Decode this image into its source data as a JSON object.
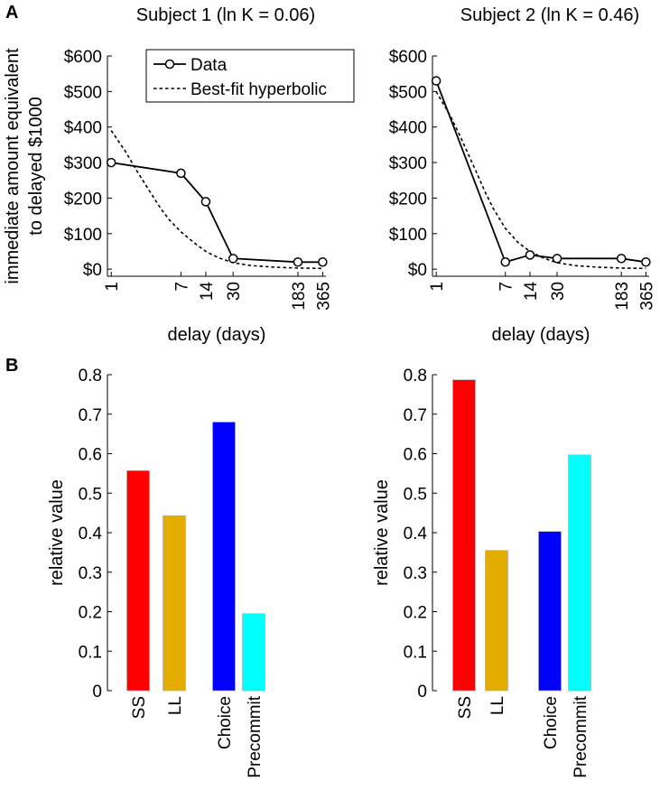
{
  "panel_labels": [
    "A",
    "B"
  ],
  "chart_data": [
    {
      "id": "subject1-delay",
      "type": "line",
      "title": "Subject 1 (ln K = 0.06)",
      "xlabel": "delay (days)",
      "ylabel": [
        "immediate amount equivalent",
        "to delayed $1000"
      ],
      "xscale": "log",
      "xlim": [
        0.9,
        400
      ],
      "ylim": [
        -20,
        600
      ],
      "xticks": [
        1,
        7,
        14,
        30,
        183,
        365
      ],
      "xtick_labels": [
        "1",
        "7",
        "14",
        "30",
        "183",
        "365"
      ],
      "yticks": [
        0,
        100,
        200,
        300,
        400,
        500,
        600
      ],
      "ytick_labels": [
        "$0",
        "$100",
        "$200",
        "$300",
        "$400",
        "$500",
        "$600"
      ],
      "legend": {
        "position": "top-right",
        "entries": [
          "Data",
          "Best-fit hyperbolic"
        ]
      },
      "series": [
        {
          "name": "Data",
          "style": "solid-circle",
          "x": [
            1,
            7,
            14,
            30,
            183,
            365
          ],
          "y": [
            300,
            270,
            190,
            30,
            20,
            20
          ]
        },
        {
          "name": "Best-fit hyperbolic",
          "style": "dashed",
          "x": [
            1,
            1.5,
            2,
            3,
            4,
            5,
            7,
            10,
            14,
            20,
            30,
            50,
            90,
            183,
            365
          ],
          "y": [
            390,
            330,
            280,
            215,
            170,
            140,
            105,
            75,
            50,
            32,
            18,
            10,
            6,
            3,
            2
          ]
        }
      ]
    },
    {
      "id": "subject2-delay",
      "type": "line",
      "title": "Subject 2 (ln K = 0.46)",
      "xlabel": "delay (days)",
      "ylabel": "",
      "xscale": "log",
      "xlim": [
        0.9,
        400
      ],
      "ylim": [
        -20,
        600
      ],
      "xticks": [
        1,
        7,
        14,
        30,
        183,
        365
      ],
      "xtick_labels": [
        "1",
        "7",
        "14",
        "30",
        "183",
        "365"
      ],
      "yticks": [
        0,
        100,
        200,
        300,
        400,
        500,
        600
      ],
      "ytick_labels": [
        "$0",
        "$100",
        "$200",
        "$300",
        "$400",
        "$500",
        "$600"
      ],
      "series": [
        {
          "name": "Data",
          "style": "solid-circle",
          "x": [
            1,
            7,
            14,
            30,
            183,
            365
          ],
          "y": [
            530,
            20,
            40,
            30,
            30,
            20
          ]
        },
        {
          "name": "Best-fit hyperbolic",
          "style": "dashed",
          "x": [
            1,
            1.5,
            2,
            3,
            4,
            5,
            7,
            10,
            14,
            20,
            30,
            50,
            90,
            183,
            365
          ],
          "y": [
            500,
            430,
            370,
            280,
            215,
            170,
            115,
            75,
            50,
            32,
            18,
            10,
            6,
            3,
            2
          ]
        }
      ]
    },
    {
      "id": "subject1-values",
      "type": "bar",
      "ylabel": "relative value",
      "ylim": [
        0,
        0.8
      ],
      "yticks": [
        0,
        0.1,
        0.2,
        0.3,
        0.4,
        0.5,
        0.6,
        0.7,
        0.8
      ],
      "ytick_labels": [
        "0",
        "0.1",
        "0.2",
        "0.3",
        "0.4",
        "0.5",
        "0.6",
        "0.7",
        "0.8"
      ],
      "categories": [
        "SS",
        "LL",
        "Choice",
        "Precommit"
      ],
      "values": [
        0.557,
        0.443,
        0.68,
        0.195
      ],
      "colors": [
        "#ff0000",
        "#e5ac00",
        "#0000ff",
        "#00ffff"
      ]
    },
    {
      "id": "subject2-values",
      "type": "bar",
      "ylabel": "relative value",
      "ylim": [
        0,
        0.8
      ],
      "yticks": [
        0,
        0.1,
        0.2,
        0.3,
        0.4,
        0.5,
        0.6,
        0.7,
        0.8
      ],
      "ytick_labels": [
        "0",
        "0.1",
        "0.2",
        "0.3",
        "0.4",
        "0.5",
        "0.6",
        "0.7",
        "0.8"
      ],
      "categories": [
        "SS",
        "LL",
        "Choice",
        "Precommit"
      ],
      "values": [
        0.787,
        0.355,
        0.403,
        0.597
      ],
      "colors": [
        "#ff0000",
        "#e5ac00",
        "#0000ff",
        "#00ffff"
      ]
    }
  ]
}
